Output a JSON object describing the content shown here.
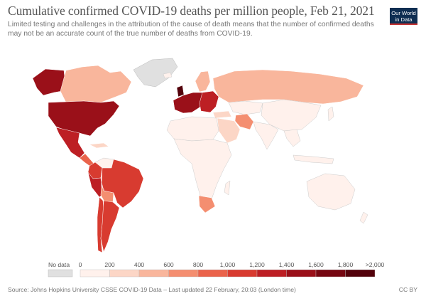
{
  "header": {
    "title": "Cumulative confirmed COVID-19 deaths per million people, Feb 21, 2021",
    "subtitle": "Limited testing and challenges in the attribution of the cause of death means that the number of confirmed deaths may not be an accurate count of the true number of deaths from COVID-19."
  },
  "logo": {
    "line1": "Our World",
    "line2": "in Data"
  },
  "legend": {
    "no_data_label": "No data",
    "tick_labels": [
      "0",
      "200",
      "400",
      "600",
      "800",
      "1,000",
      "1,200",
      "1,400",
      "1,600",
      "1,800",
      ">2,000"
    ],
    "colors": [
      "#fff1ec",
      "#fcd6c6",
      "#f9b69c",
      "#f48e70",
      "#ea634b",
      "#d83b30",
      "#bd1f24",
      "#9a1019",
      "#760711",
      "#53020b"
    ],
    "no_data_color": "#e0e0e0",
    "separator": "#bbbbbb"
  },
  "footer": {
    "source": "Source: Johns Hopkins University CSSE COVID-19 Data – Last updated 22 February, 20:03 (London time)",
    "license": "CC BY"
  },
  "chart_data": {
    "type": "map",
    "title": "Cumulative confirmed COVID-19 deaths per million people, Feb 21, 2021",
    "date": "Feb 21, 2021",
    "unit": "deaths per million",
    "legend_bins": [
      0,
      200,
      400,
      600,
      800,
      1000,
      1200,
      1400,
      1600,
      1800,
      2000
    ],
    "regions": [
      {
        "name": "Greenland",
        "band": "no data"
      },
      {
        "name": "Alaska",
        "band": "1,400-1,600"
      },
      {
        "name": "Canada",
        "band": "400-600"
      },
      {
        "name": "United States",
        "band": "1,400-1,600"
      },
      {
        "name": "Mexico",
        "band": "1,200-1,400"
      },
      {
        "name": "Central America",
        "band": "600-1,000"
      },
      {
        "name": "Colombia",
        "band": "1,000-1,200"
      },
      {
        "name": "Venezuela",
        "band": "0-200"
      },
      {
        "name": "Peru",
        "band": "1,200-1,400"
      },
      {
        "name": "Brazil",
        "band": "1,000-1,200"
      },
      {
        "name": "Bolivia",
        "band": "600-800"
      },
      {
        "name": "Argentina",
        "band": "1,000-1,200"
      },
      {
        "name": "Chile",
        "band": "1,000-1,200"
      },
      {
        "name": "United Kingdom",
        "band": ">2,000"
      },
      {
        "name": "Western Europe",
        "band": "1,400-2,000"
      },
      {
        "name": "Scandinavia",
        "band": "200-600"
      },
      {
        "name": "Eastern Europe",
        "band": "1,000-1,400"
      },
      {
        "name": "Russia",
        "band": "400-600"
      },
      {
        "name": "Kazakhstan",
        "band": "0-200"
      },
      {
        "name": "Iran",
        "band": "400-600"
      },
      {
        "name": "Middle East",
        "band": "200-400"
      },
      {
        "name": "China",
        "band": "0-200"
      },
      {
        "name": "India",
        "band": "0-200"
      },
      {
        "name": "Southeast Asia",
        "band": "0-200"
      },
      {
        "name": "Africa",
        "band": "0-200"
      },
      {
        "name": "South Africa",
        "band": "600-800"
      },
      {
        "name": "Australia",
        "band": "0-200"
      }
    ]
  }
}
